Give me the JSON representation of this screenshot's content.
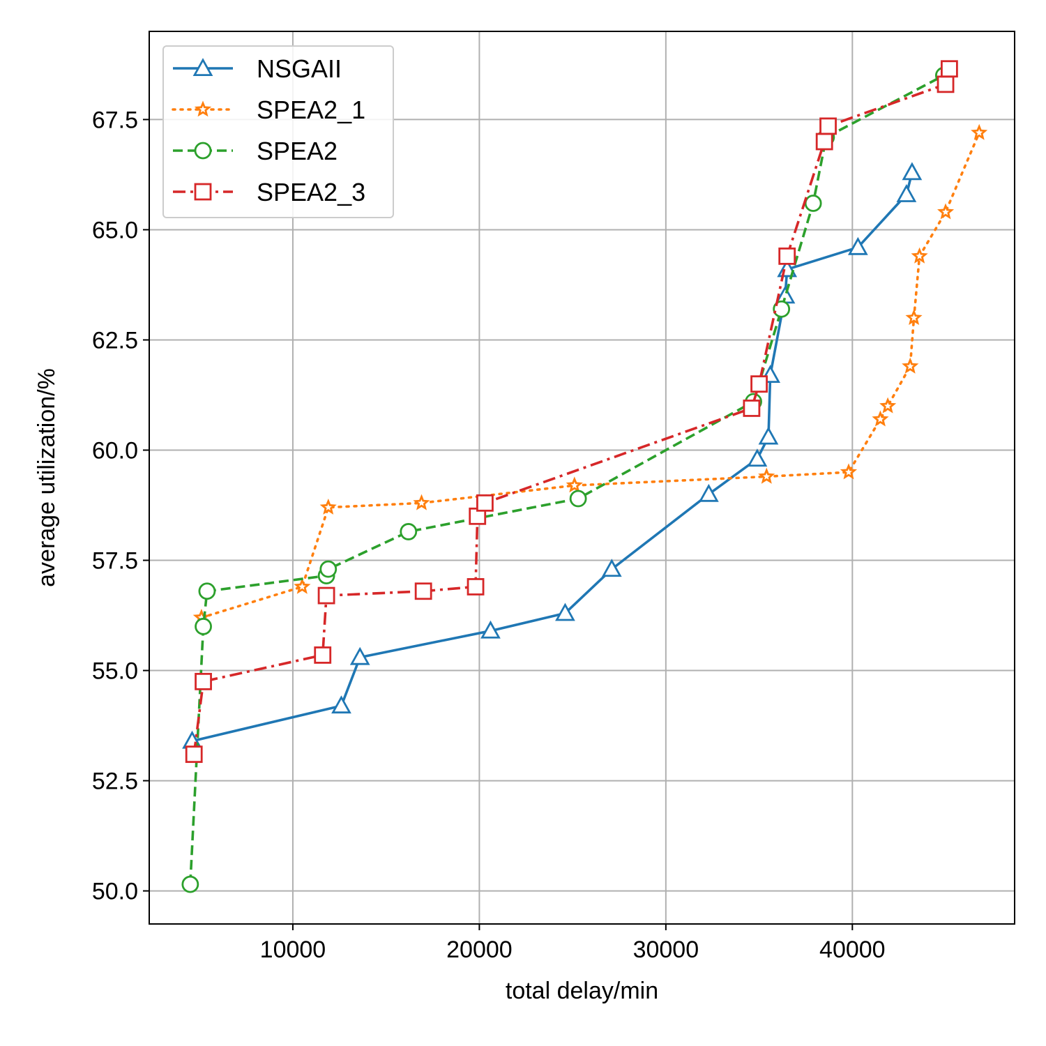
{
  "chart_data": {
    "type": "line",
    "xlabel": "total delay/min",
    "ylabel": "average utilization/%",
    "xlim": [
      2300,
      48700
    ],
    "ylim": [
      49.25,
      69.5
    ],
    "xticks": [
      10000,
      20000,
      30000,
      40000
    ],
    "yticks": [
      50.0,
      52.5,
      55.0,
      57.5,
      60.0,
      62.5,
      65.0,
      67.5
    ],
    "xtick_labels": [
      "10000",
      "20000",
      "30000",
      "40000"
    ],
    "ytick_labels": [
      "50.0",
      "52.5",
      "55.0",
      "57.5",
      "60.0",
      "62.5",
      "65.0",
      "67.5"
    ],
    "grid": true,
    "legend_position": "upper-left",
    "series": [
      {
        "name": "NSGAII",
        "color": "#1f77b4",
        "dash": "solid",
        "marker": "triangle",
        "x": [
          4600,
          12600,
          13600,
          20600,
          24600,
          27100,
          32300,
          34900,
          35500,
          35600,
          36400,
          36500,
          40300,
          42900,
          43200
        ],
        "y": [
          53.4,
          54.2,
          55.3,
          55.9,
          56.3,
          57.3,
          59.0,
          59.8,
          60.3,
          61.7,
          63.5,
          64.1,
          64.6,
          65.8,
          66.3
        ]
      },
      {
        "name": "SPEA2_1",
        "color": "#ff7f0e",
        "dash": "dotted",
        "marker": "star",
        "x": [
          5100,
          10500,
          11900,
          16900,
          25100,
          35400,
          39800,
          41500,
          41900,
          43100,
          43300,
          43600,
          45000,
          46800
        ],
        "y": [
          56.2,
          56.9,
          58.7,
          58.8,
          59.2,
          59.4,
          59.5,
          60.7,
          61.0,
          61.9,
          63.0,
          64.4,
          65.4,
          67.2
        ]
      },
      {
        "name": "SPEA2",
        "color": "#2ca02c",
        "dash": "dashed",
        "marker": "circle",
        "x": [
          4500,
          5200,
          5400,
          11800,
          11900,
          16200,
          25300,
          34700,
          36200,
          37900,
          38600,
          44900
        ],
        "y": [
          50.15,
          56.0,
          56.8,
          57.15,
          57.3,
          58.15,
          58.9,
          61.1,
          63.2,
          65.6,
          67.1,
          68.5
        ]
      },
      {
        "name": "SPEA2_3",
        "color": "#d62728",
        "dash": "dashdot",
        "marker": "square",
        "x": [
          4700,
          5200,
          11600,
          11800,
          17000,
          19800,
          19900,
          20300,
          34600,
          35000,
          36500,
          38500,
          38700,
          45000,
          45200
        ],
        "y": [
          53.1,
          54.75,
          55.35,
          56.7,
          56.8,
          56.9,
          58.5,
          58.8,
          60.95,
          61.5,
          64.4,
          67.0,
          67.35,
          68.3,
          68.65
        ]
      }
    ]
  }
}
